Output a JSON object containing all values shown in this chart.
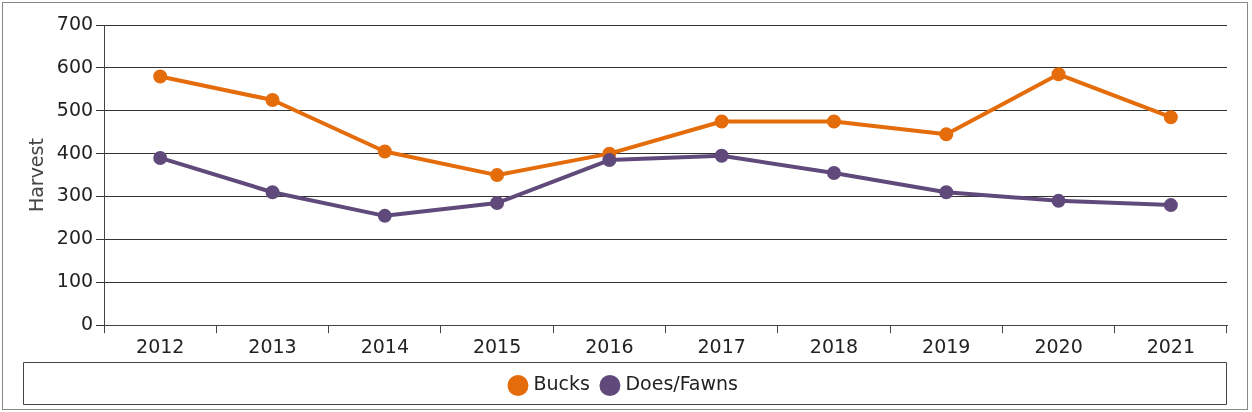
{
  "chart_data": {
    "type": "line",
    "ylabel": "Harvest",
    "categories": [
      "2012",
      "2013",
      "2014",
      "2015",
      "2016",
      "2017",
      "2018",
      "2019",
      "2020",
      "2021"
    ],
    "series": [
      {
        "name": "Bucks",
        "color": "#e46c0a",
        "values": [
          580,
          525,
          405,
          350,
          400,
          475,
          475,
          445,
          585,
          485
        ]
      },
      {
        "name": "Does/Fawns",
        "color": "#604a7b",
        "values": [
          390,
          310,
          255,
          285,
          385,
          395,
          355,
          310,
          290,
          280
        ]
      }
    ],
    "ylim": [
      0,
      700
    ],
    "yticks": [
      0,
      100,
      200,
      300,
      400,
      500,
      600,
      700
    ],
    "grid": "y",
    "legend": "bottom",
    "marker": "circle",
    "line_style": "solid"
  }
}
